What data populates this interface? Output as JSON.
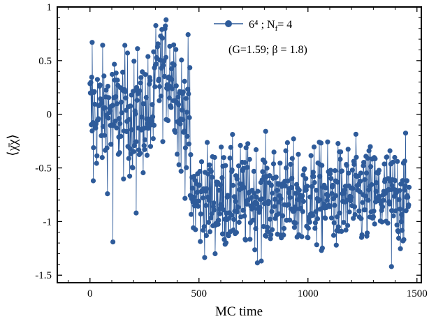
{
  "chart_data": {
    "type": "scatter",
    "xlabel": "MC time",
    "ylabel": "⟨χ̄χ⟩",
    "xlim": [
      -150,
      1520
    ],
    "ylim": [
      -1.57,
      1.0
    ],
    "x_ticks": [
      0,
      500,
      1000,
      1500
    ],
    "x_tick_labels": [
      "0",
      "500",
      "1000",
      "1500"
    ],
    "y_ticks": [
      1,
      0.5,
      0,
      -0.5,
      -1,
      -1.5
    ],
    "y_tick_labels": [
      "1",
      "0.5",
      "0",
      "-0.5",
      "-1",
      "-1.5"
    ],
    "legend": {
      "position": "top-right",
      "series_label": "6⁴ ; N",
      "series_label_sub": "f",
      "series_label_tail": "= 4",
      "params": "(G=1.59; β = 1.8)"
    },
    "series": [
      {
        "name": "6⁴ ; Nf = 4",
        "color": "#2e5b9a",
        "marker": "circle",
        "x_start": 0,
        "x_step": 1,
        "n_points": 1465,
        "phases": [
          {
            "x": [
              0,
              300
            ],
            "mean": 0.0,
            "spread": 0.28
          },
          {
            "x": [
              300,
              400
            ],
            "mean": 0.38,
            "spread": 0.25
          },
          {
            "x": [
              400,
              460
            ],
            "mean": 0.0,
            "spread": 0.3
          },
          {
            "x": [
              460,
              1465
            ],
            "mean": -0.78,
            "spread": 0.24
          }
        ],
        "highlights": [
          {
            "x": 349,
            "y": 0.88
          },
          {
            "x": 105,
            "y": -1.19
          },
          {
            "x": 15,
            "y": -0.62
          },
          {
            "x": 10,
            "y": 0.67
          },
          {
            "x": 212,
            "y": -0.92
          },
          {
            "x": 1383,
            "y": -1.42
          }
        ]
      }
    ]
  }
}
